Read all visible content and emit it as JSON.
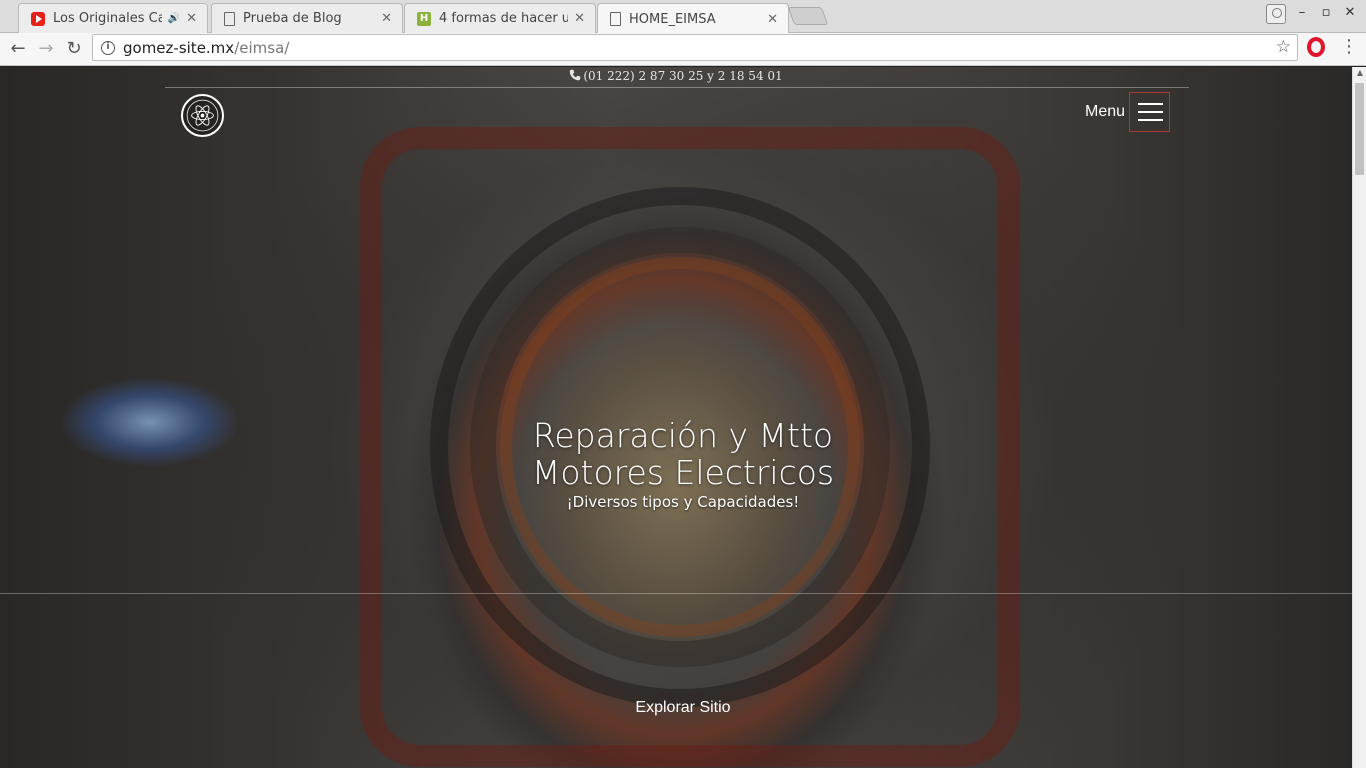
{
  "browser": {
    "tabs": [
      {
        "title": "Los Originales Ca",
        "icon": "youtube-icon",
        "audio": true
      },
      {
        "title": "Prueba de Blog",
        "icon": "document-icon"
      },
      {
        "title": "4 formas de hacer u",
        "icon": "wikihow-icon"
      },
      {
        "title": "HOME_EIMSA",
        "icon": "document-icon",
        "active": true
      }
    ],
    "close_glyph": "✕",
    "audio_glyph": "🔊",
    "wikihow_glyph": "H",
    "url_host": "gomez-site.mx",
    "url_path": "/eimsa/",
    "window_controls": {
      "minimize": "–",
      "maximize": "▫",
      "close": "✕"
    }
  },
  "site": {
    "phone": "(01 222) 2 87 30 25 y 2 18 54 01",
    "menu_label": "Menu",
    "hero_title_line1": "Reparación y Mtto",
    "hero_title_line2": "Motores Electricos",
    "hero_subtitle": "¡Diversos tipos y Capacidades!",
    "explore_label": "Explorar Sitio"
  },
  "colors": {
    "menu_border": "#c83c32",
    "tab_strip": "#dcdcdc",
    "opera_red": "#e0142b"
  }
}
